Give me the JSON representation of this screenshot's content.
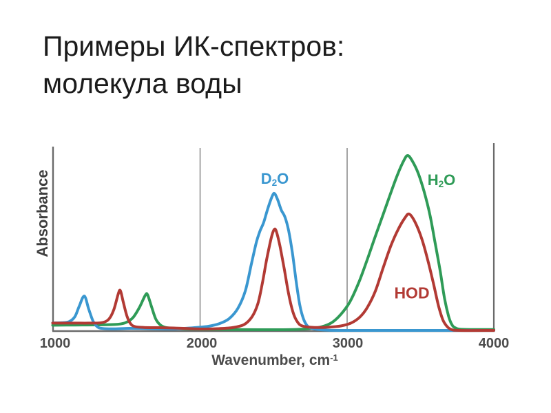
{
  "slide": {
    "title_line1": "Примеры ИК-спектров:",
    "title_line2": "молекула воды"
  },
  "colors": {
    "d2o_blue": "#3a97d0",
    "h2o_green": "#2f9b57",
    "hod_red": "#b23a34",
    "axis_line": "#6a6a6a",
    "grid_line": "#7d7d7d",
    "tick_text": "#4c4c4c",
    "title_text": "#1b1b1b"
  },
  "chart_data": {
    "type": "line",
    "title": "",
    "ylabel": "Absorbance",
    "xlabel": {
      "text": "Wavenumber, cm",
      "sup": "-1"
    },
    "xlim": [
      1000,
      4000
    ],
    "x_tick_labels": [
      "1000",
      "2000",
      "3000",
      "4000"
    ],
    "x_ticks": [
      1000,
      2000,
      3000,
      4000
    ],
    "y_axis": "unlabeled relative absorbance, 0 to 1",
    "grid": "vertical gridlines at 2000 and 3000",
    "legend": "inline colored labels next to curves",
    "series": [
      {
        "name_plain": "D2O",
        "label": {
          "pre": "D",
          "sub": "2",
          "post": "O"
        },
        "color": "#3a97d0",
        "z": 2,
        "peaks_cm1": [
          1215,
          2505
        ],
        "points": [
          [
            1000,
            0.035
          ],
          [
            1060,
            0.036
          ],
          [
            1110,
            0.042
          ],
          [
            1150,
            0.07
          ],
          [
            1180,
            0.13
          ],
          [
            1215,
            0.19
          ],
          [
            1245,
            0.115
          ],
          [
            1275,
            0.045
          ],
          [
            1305,
            0.012
          ],
          [
            1340,
            0.003
          ],
          [
            1420,
            0.001
          ],
          [
            1520,
            0.004
          ],
          [
            1620,
            0.003
          ],
          [
            1720,
            0.001
          ],
          [
            1820,
            0.0
          ],
          [
            1900,
            0.004
          ],
          [
            1980,
            0.009
          ],
          [
            2060,
            0.016
          ],
          [
            2130,
            0.03
          ],
          [
            2200,
            0.06
          ],
          [
            2260,
            0.12
          ],
          [
            2310,
            0.22
          ],
          [
            2350,
            0.37
          ],
          [
            2385,
            0.5
          ],
          [
            2410,
            0.565
          ],
          [
            2435,
            0.615
          ],
          [
            2465,
            0.7
          ],
          [
            2495,
            0.77
          ],
          [
            2510,
            0.78
          ],
          [
            2530,
            0.745
          ],
          [
            2555,
            0.685
          ],
          [
            2580,
            0.645
          ],
          [
            2605,
            0.565
          ],
          [
            2630,
            0.44
          ],
          [
            2655,
            0.28
          ],
          [
            2680,
            0.14
          ],
          [
            2705,
            0.06
          ],
          [
            2730,
            0.02
          ],
          [
            2760,
            0.004
          ],
          [
            2820,
            -0.004
          ],
          [
            2950,
            -0.008
          ],
          [
            3400,
            -0.008
          ],
          [
            4000,
            -0.008
          ]
        ]
      },
      {
        "name_plain": "H2O",
        "label": {
          "pre": "H",
          "sub": "2",
          "post": "O"
        },
        "color": "#2f9b57",
        "z": 1,
        "peaks_cm1": [
          1640,
          3415
        ],
        "points": [
          [
            1000,
            0.022
          ],
          [
            1150,
            0.023
          ],
          [
            1300,
            0.024
          ],
          [
            1420,
            0.026
          ],
          [
            1490,
            0.035
          ],
          [
            1545,
            0.065
          ],
          [
            1590,
            0.125
          ],
          [
            1630,
            0.195
          ],
          [
            1645,
            0.198
          ],
          [
            1670,
            0.135
          ],
          [
            1700,
            0.06
          ],
          [
            1730,
            0.025
          ],
          [
            1765,
            0.01
          ],
          [
            1830,
            0.003
          ],
          [
            1930,
            0.0
          ],
          [
            2050,
            -0.002
          ],
          [
            2200,
            -0.003
          ],
          [
            2400,
            -0.004
          ],
          [
            2550,
            -0.004
          ],
          [
            2670,
            -0.002
          ],
          [
            2760,
            0.003
          ],
          [
            2830,
            0.013
          ],
          [
            2900,
            0.038
          ],
          [
            2960,
            0.085
          ],
          [
            3020,
            0.155
          ],
          [
            3080,
            0.265
          ],
          [
            3135,
            0.39
          ],
          [
            3190,
            0.525
          ],
          [
            3245,
            0.655
          ],
          [
            3295,
            0.775
          ],
          [
            3345,
            0.89
          ],
          [
            3390,
            0.975
          ],
          [
            3415,
            1.0
          ],
          [
            3445,
            0.97
          ],
          [
            3485,
            0.9
          ],
          [
            3525,
            0.795
          ],
          [
            3565,
            0.66
          ],
          [
            3600,
            0.5
          ],
          [
            3635,
            0.335
          ],
          [
            3665,
            0.175
          ],
          [
            3692,
            0.075
          ],
          [
            3715,
            0.025
          ],
          [
            3740,
            0.006
          ],
          [
            3790,
            -0.002
          ],
          [
            4000,
            -0.003
          ]
        ]
      },
      {
        "name_plain": "HOD",
        "label": {
          "pre": "HOD",
          "sub": "",
          "post": ""
        },
        "color": "#b23a34",
        "z": 3,
        "peaks_cm1": [
          1455,
          2510,
          3425
        ],
        "points": [
          [
            1000,
            0.034
          ],
          [
            1150,
            0.034
          ],
          [
            1250,
            0.034
          ],
          [
            1330,
            0.036
          ],
          [
            1380,
            0.055
          ],
          [
            1415,
            0.11
          ],
          [
            1445,
            0.2
          ],
          [
            1460,
            0.222
          ],
          [
            1480,
            0.155
          ],
          [
            1505,
            0.075
          ],
          [
            1530,
            0.03
          ],
          [
            1560,
            0.014
          ],
          [
            1620,
            0.009
          ],
          [
            1720,
            0.008
          ],
          [
            1820,
            0.006
          ],
          [
            1920,
            0.003
          ],
          [
            2020,
            0.0
          ],
          [
            2120,
            0.002
          ],
          [
            2220,
            0.008
          ],
          [
            2300,
            0.025
          ],
          [
            2355,
            0.07
          ],
          [
            2395,
            0.145
          ],
          [
            2425,
            0.26
          ],
          [
            2455,
            0.4
          ],
          [
            2485,
            0.52
          ],
          [
            2505,
            0.572
          ],
          [
            2520,
            0.565
          ],
          [
            2545,
            0.48
          ],
          [
            2575,
            0.345
          ],
          [
            2605,
            0.2
          ],
          [
            2635,
            0.095
          ],
          [
            2665,
            0.04
          ],
          [
            2700,
            0.017
          ],
          [
            2780,
            0.009
          ],
          [
            2880,
            0.011
          ],
          [
            2960,
            0.018
          ],
          [
            3030,
            0.035
          ],
          [
            3090,
            0.07
          ],
          [
            3140,
            0.125
          ],
          [
            3195,
            0.22
          ],
          [
            3250,
            0.36
          ],
          [
            3300,
            0.48
          ],
          [
            3350,
            0.575
          ],
          [
            3395,
            0.64
          ],
          [
            3425,
            0.663
          ],
          [
            3465,
            0.615
          ],
          [
            3510,
            0.52
          ],
          [
            3550,
            0.4
          ],
          [
            3590,
            0.26
          ],
          [
            3625,
            0.13
          ],
          [
            3655,
            0.05
          ],
          [
            3685,
            0.012
          ],
          [
            3715,
            -0.004
          ],
          [
            3770,
            -0.008
          ],
          [
            4000,
            -0.008
          ]
        ]
      }
    ]
  }
}
